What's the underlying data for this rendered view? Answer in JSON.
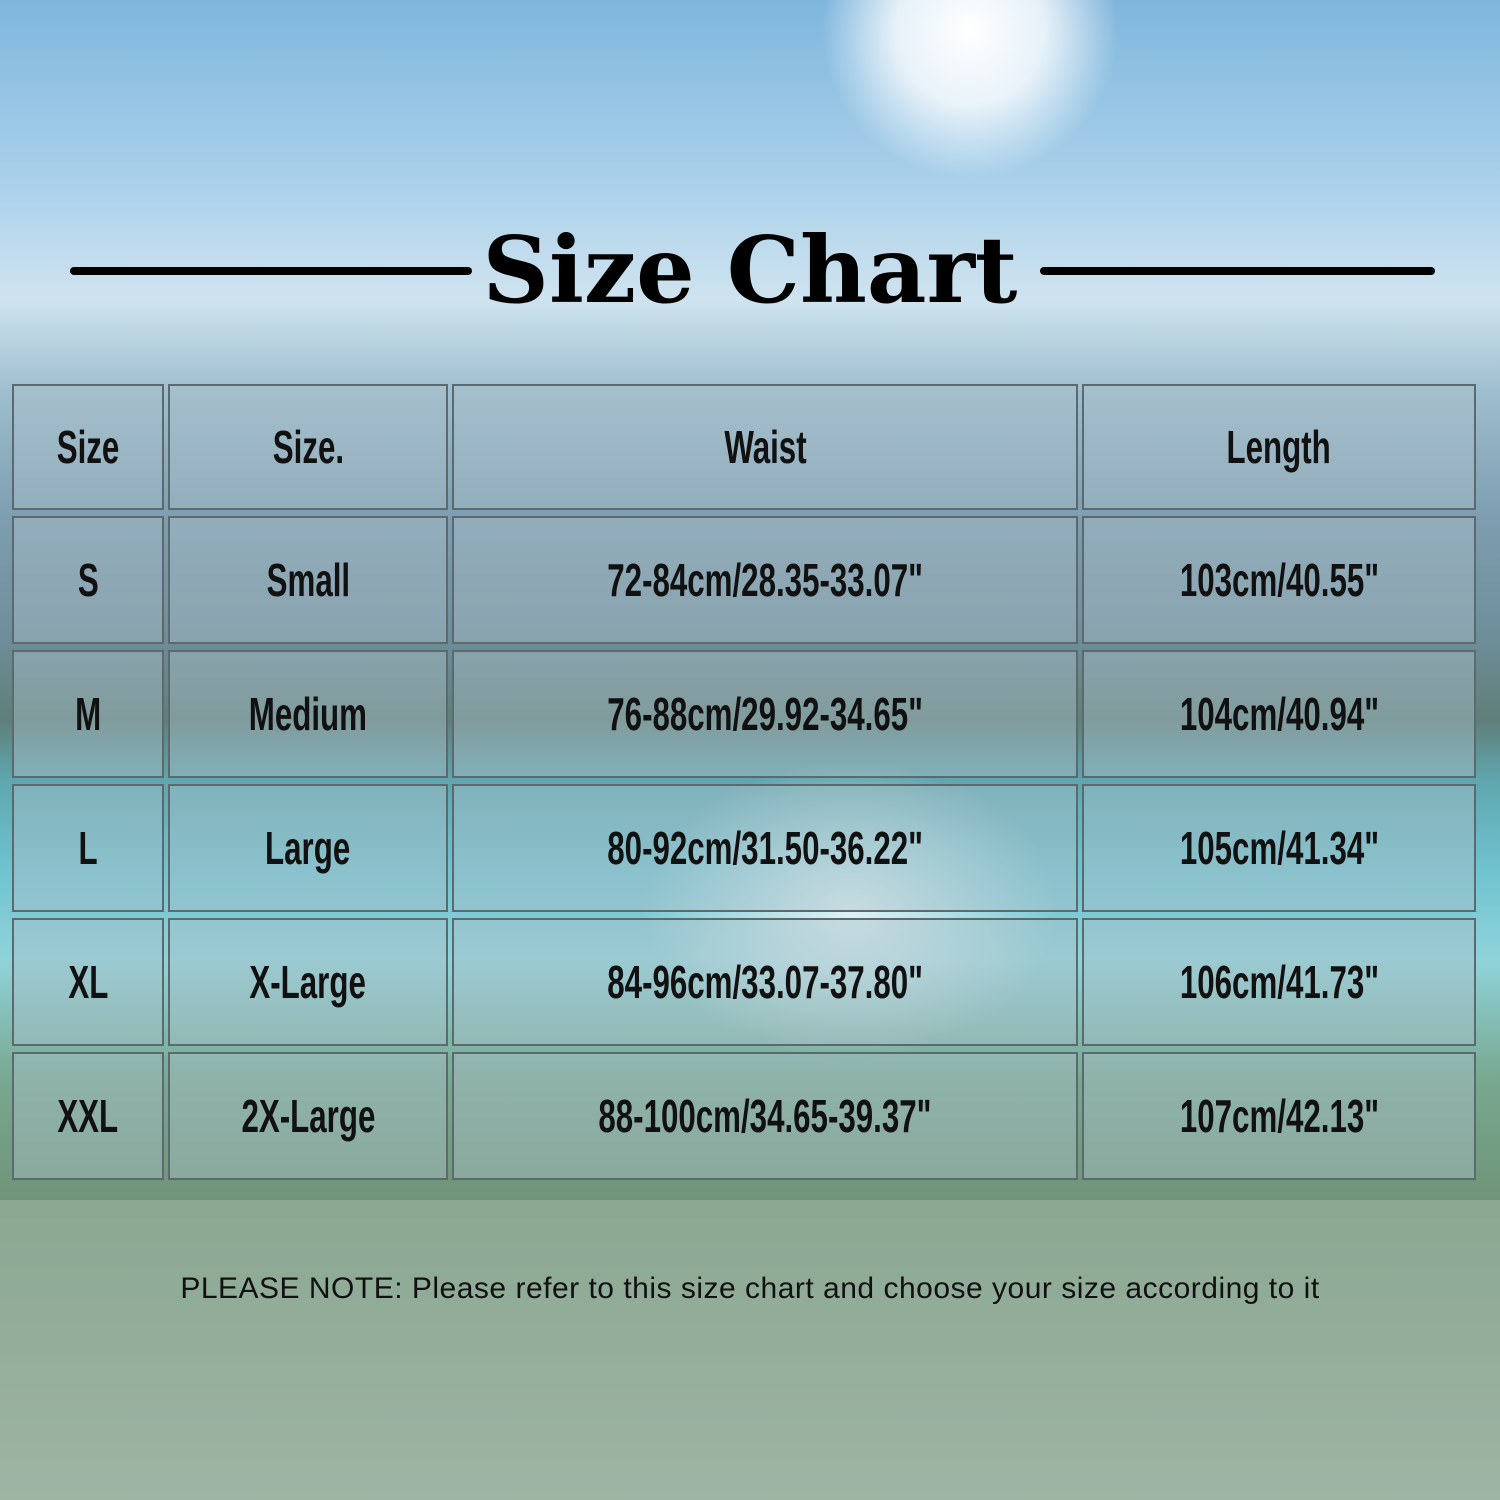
{
  "title": "Size Chart",
  "table": {
    "headers": [
      "Size",
      "Size.",
      "Waist",
      "Length"
    ],
    "rows": [
      [
        "S",
        "Small",
        "72-84cm/28.35-33.07\"",
        "103cm/40.55\""
      ],
      [
        "M",
        "Medium",
        "76-88cm/29.92-34.65\"",
        "104cm/40.94\""
      ],
      [
        "L",
        "Large",
        "80-92cm/31.50-36.22\"",
        "105cm/41.34\""
      ],
      [
        "XL",
        "X-Large",
        "84-96cm/33.07-37.80\"",
        "106cm/41.73\""
      ],
      [
        "XXL",
        "2X-Large",
        "88-100cm/34.65-39.37\"",
        "107cm/42.13\""
      ]
    ]
  },
  "note": "PLEASE NOTE: Please refer to this size chart and choose your size according to it"
}
